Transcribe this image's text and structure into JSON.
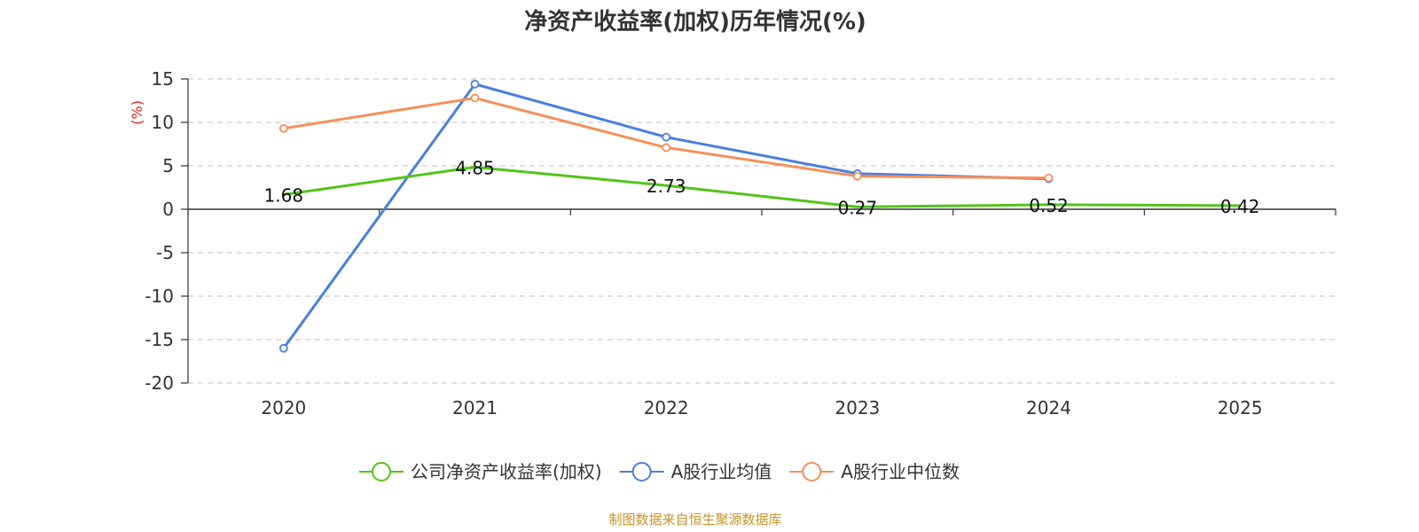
{
  "chart_data": {
    "type": "line",
    "title": "净资产收益率(加权)历年情况(%)",
    "ylabel": "(%)",
    "xlabel": "",
    "categories": [
      "2020",
      "2021",
      "2022",
      "2023",
      "2024",
      "2025"
    ],
    "ylim": [
      -20,
      15
    ],
    "yticks": [
      15,
      10,
      5,
      0,
      -5,
      -10,
      -15,
      -20
    ],
    "grid": true,
    "legend_position": "bottom",
    "series": [
      {
        "name": "公司净资产收益率(加权)",
        "color": "#52c41a",
        "values": [
          1.68,
          4.85,
          2.73,
          0.27,
          0.52,
          0.42
        ],
        "labels": [
          "1.68",
          "4.85",
          "2.73",
          "0.27",
          "0.52",
          "0.42"
        ]
      },
      {
        "name": "A股行业均值",
        "color": "#4a7fdc",
        "values": [
          -16.0,
          14.4,
          8.3,
          4.1,
          3.5,
          null
        ]
      },
      {
        "name": "A股行业中位数",
        "color": "#f5905a",
        "values": [
          9.3,
          12.8,
          7.1,
          3.8,
          3.6,
          null
        ]
      }
    ],
    "source": "制图数据来自恒生聚源数据库",
    "ylabel_color": "#e02020",
    "source_color": "#c8922a"
  }
}
